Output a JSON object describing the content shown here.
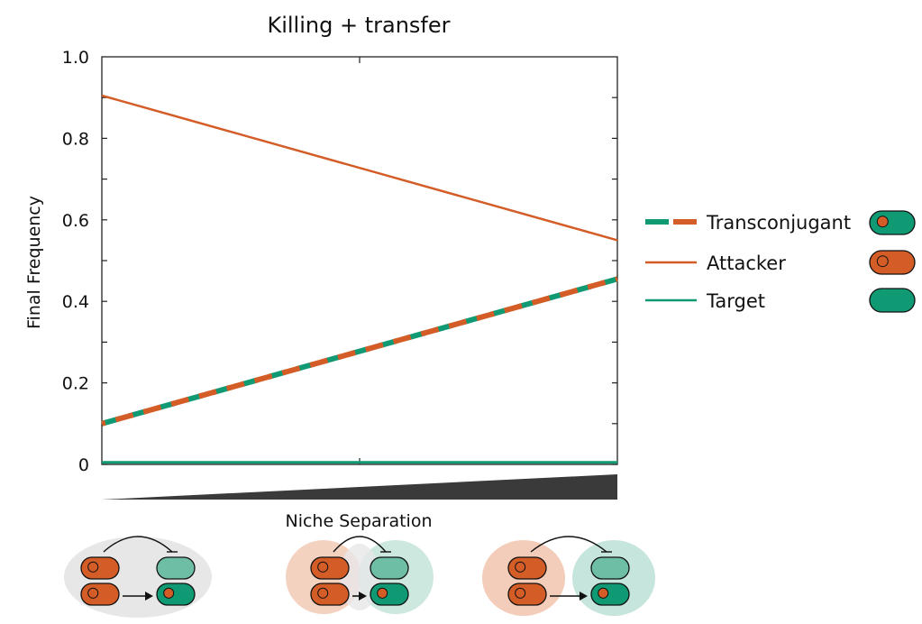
{
  "colors": {
    "attacker": "#d45d27",
    "target": "#0f9a74",
    "target_light": "#6dbea5",
    "niche_gray": "#e7e7e8",
    "niche_attacker": "#f3cdb9",
    "niche_target": "#c6e5dc",
    "wedge": "#3a3a3a"
  },
  "chart_data": {
    "type": "line",
    "title": "Killing + transfer",
    "xlabel": "Niche Separation",
    "ylabel": "Final Frequency",
    "xlim": [
      0,
      1
    ],
    "ylim": [
      0,
      1.0
    ],
    "yticks": [
      0,
      0.2,
      0.4,
      0.6,
      0.8,
      1.0
    ],
    "ytick_labels": [
      "0",
      "0.2",
      "0.4",
      "0.6",
      "0.8",
      "1.0"
    ],
    "x": [
      0,
      1
    ],
    "series": [
      {
        "name": "Transconjugant",
        "values": [
          0.1,
          0.455
        ],
        "style": "dashed",
        "colors": [
          "#0f9a74",
          "#d45d27"
        ]
      },
      {
        "name": "Attacker",
        "values": [
          0.905,
          0.55
        ],
        "style": "solid",
        "color": "#d45d27"
      },
      {
        "name": "Target",
        "values": [
          0.005,
          0.005
        ],
        "style": "solid",
        "color": "#0f9a74"
      }
    ],
    "legend_position": "right",
    "x_indicator": "increasing-wedge",
    "grid": false
  },
  "schematics": [
    {
      "name": "no-separation",
      "level": 0
    },
    {
      "name": "partial-separation",
      "level": 0.5
    },
    {
      "name": "full-separation",
      "level": 1
    }
  ]
}
